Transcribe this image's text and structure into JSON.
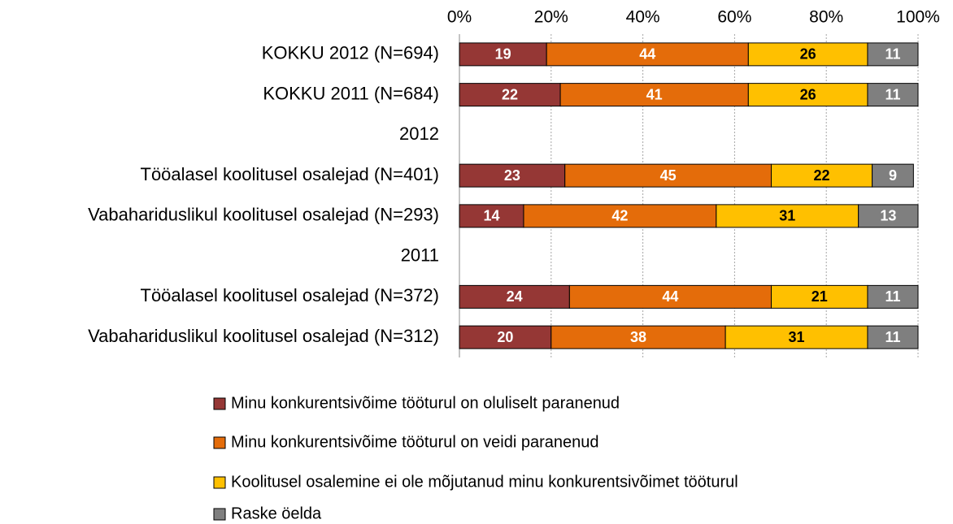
{
  "chart_data": {
    "type": "stacked-barh",
    "categories": [
      "KOKKU 2012 (N=694)",
      "KOKKU 2011 (N=684)",
      "2012",
      "Tööalasel koolitusel osalejad (N=401)",
      "Vabahariduslikul koolitusel osalejad (N=293)",
      "2011",
      "Tööalasel koolitusel osalejad (N=372)",
      "Vabahariduslikul koolitusel osalejad (N=312)"
    ],
    "series": [
      {
        "name": "Minu konkurentsivõime tööturul on oluliselt paranenud",
        "color": "#953735",
        "label_color": "#ffffff",
        "values": [
          19,
          22,
          null,
          23,
          14,
          null,
          24,
          20
        ]
      },
      {
        "name": "Minu konkurentsivõime tööturul on veidi paranenud",
        "color": "#e46c0a",
        "label_color": "#ffffff",
        "values": [
          44,
          41,
          null,
          45,
          42,
          null,
          44,
          38
        ]
      },
      {
        "name": "Koolitusel osalemine ei ole mõjutanud minu konkurentsivõimet tööturul",
        "color": "#ffc000",
        "label_color": "#000000",
        "values": [
          26,
          26,
          null,
          22,
          31,
          null,
          21,
          31
        ]
      },
      {
        "name": "Raske öelda",
        "color": "#7f7f7f",
        "label_color": "#ffffff",
        "values": [
          11,
          11,
          null,
          9,
          13,
          null,
          11,
          11
        ]
      }
    ],
    "xlim": [
      0,
      100
    ],
    "xticks": [
      {
        "value": 0,
        "label": "0%"
      },
      {
        "value": 20,
        "label": "20%"
      },
      {
        "value": 40,
        "label": "40%"
      },
      {
        "value": 60,
        "label": "60%"
      },
      {
        "value": 80,
        "label": "80%"
      },
      {
        "value": 100,
        "label": "100%"
      }
    ],
    "grid": true
  }
}
